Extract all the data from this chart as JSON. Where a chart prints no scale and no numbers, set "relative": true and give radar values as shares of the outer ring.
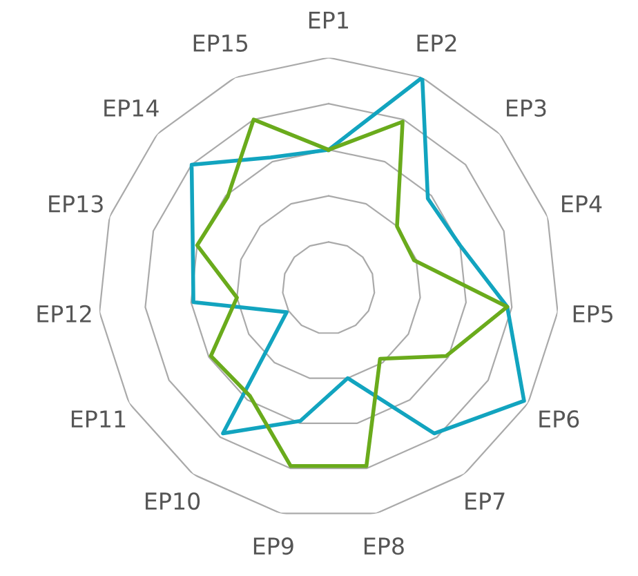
{
  "chart_data": {
    "type": "radar",
    "relative": true,
    "grid": true,
    "marker": "none",
    "line_style": "solid",
    "categories": [
      "EP1",
      "EP2",
      "EP3",
      "EP4",
      "EP5",
      "EP6",
      "EP7",
      "EP8",
      "EP9",
      "EP10",
      "EP11",
      "EP12",
      "EP13",
      "EP14",
      "EP15"
    ],
    "series": [
      {
        "color": "#12a4bf",
        "values": [
          0.6,
          1.0,
          0.58,
          0.6,
          0.78,
          0.98,
          0.78,
          0.4,
          0.59,
          0.78,
          0.21,
          0.59,
          0.62,
          0.8,
          0.62
        ]
      },
      {
        "color": "#6aab1c",
        "values": [
          0.6,
          0.79,
          0.4,
          0.39,
          0.78,
          0.59,
          0.38,
          0.79,
          0.79,
          0.58,
          0.59,
          0.4,
          0.6,
          0.59,
          0.8
        ]
      }
    ]
  }
}
